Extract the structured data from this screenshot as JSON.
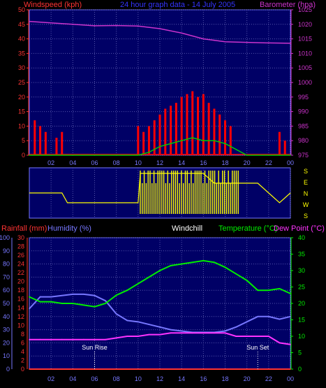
{
  "header": {
    "windspeed_label": "Windspeed (kph)",
    "title": "24 hour graph data - 14 July 2005",
    "barometer_label": "Barometer (hpa)"
  },
  "wind_chart": {
    "left_ticks": [
      "50",
      "45",
      "40",
      "35",
      "30",
      "25",
      "20",
      "15",
      "10",
      "5",
      "0"
    ],
    "right_ticks": [
      "1025",
      "1020",
      "1015",
      "1010",
      "1005",
      "1000",
      "995",
      "990",
      "985",
      "980",
      "975"
    ],
    "x_ticks": [
      "02",
      "04",
      "06",
      "08",
      "10",
      "12",
      "14",
      "16",
      "18",
      "20",
      "22",
      "00"
    ]
  },
  "direction_chart": {
    "compass": [
      "S",
      "E",
      "N",
      "W",
      "S"
    ]
  },
  "weather_header": {
    "rainfall_label": "Rainfall (mm)",
    "humidity_label": "Humidity (%)",
    "windchill_label": "Windchill",
    "temperature_label": "Temperature (°C)",
    "dewpoint_label": "Dew Point (°C)"
  },
  "weather_chart": {
    "humidity_ticks": [
      "100",
      "90",
      "80",
      "70",
      "60",
      "50",
      "40",
      "30",
      "20",
      "10",
      "0"
    ],
    "rain_ticks": [
      "30",
      "28",
      "26",
      "24",
      "22",
      "20",
      "18",
      "16",
      "14",
      "12",
      "10",
      "8",
      "6",
      "4",
      "2",
      "0"
    ],
    "temp_ticks": [
      "40",
      "35",
      "30",
      "25",
      "20",
      "15",
      "10",
      "5",
      "0"
    ],
    "x_ticks": [
      "02",
      "04",
      "06",
      "08",
      "10",
      "12",
      "14",
      "16",
      "18",
      "20",
      "22",
      "00"
    ],
    "sunrise_label": "Sun Rise",
    "sunset_label": "Sun Set"
  },
  "colors": {
    "wind": "#ff0000",
    "gust": "#00cc00",
    "barometer": "#cc33cc",
    "direction": "#ffff00",
    "humidity": "#7777ff",
    "temperature": "#00ee00",
    "dewpoint": "#ff33ff",
    "rainfall": "#ff3333",
    "panel": "#000066"
  },
  "chart_data": [
    {
      "type": "line",
      "x_unit": "hour",
      "ylim_left": [
        0,
        50
      ],
      "ylim_right": [
        975,
        1025
      ],
      "series": [
        {
          "name": "Barometer",
          "axis": "right",
          "x": [
            0,
            2,
            4,
            6,
            8,
            10,
            12,
            14,
            16,
            17,
            18,
            20,
            22,
            24
          ],
          "values": [
            1021,
            1020.5,
            1020,
            1019.5,
            1019.6,
            1019.4,
            1018.5,
            1017,
            1015,
            1014.5,
            1014,
            1013.8,
            1013.6,
            1013.5
          ]
        },
        {
          "name": "Windspeed",
          "axis": "left",
          "x": [
            0,
            0.5,
            1,
            1.5,
            2,
            2.5,
            3,
            3.5,
            4,
            4.5,
            5,
            5.5,
            6,
            6.5,
            7,
            7.5,
            8,
            8.5,
            9,
            9.5,
            10,
            10.5,
            11,
            11.5,
            12,
            12.5,
            13,
            13.5,
            14,
            14.5,
            15,
            15.5,
            16,
            16.5,
            17,
            17.5,
            18,
            18.5,
            19,
            19.5,
            20,
            20.5,
            21,
            21.5,
            22,
            22.5,
            23,
            23.5,
            24
          ],
          "values": [
            0,
            12,
            10,
            8,
            0,
            6,
            8,
            0,
            0,
            0,
            0,
            0,
            0,
            0,
            0,
            0,
            0,
            0,
            0,
            0,
            10,
            8,
            10,
            12,
            14,
            16,
            17,
            18,
            20,
            21,
            22,
            20,
            21,
            18,
            16,
            14,
            12,
            10,
            0,
            0,
            0,
            0,
            0,
            0,
            0,
            0,
            8,
            5,
            0
          ]
        },
        {
          "name": "Gust",
          "axis": "left",
          "x": [
            0,
            2,
            4,
            6,
            8,
            10,
            11,
            12,
            13,
            14,
            15,
            16,
            17,
            18,
            19,
            20,
            22,
            23,
            24
          ],
          "values": [
            0,
            0,
            0,
            0,
            0,
            0,
            1,
            3,
            4,
            5,
            6,
            5,
            5,
            4,
            2,
            0,
            0,
            0,
            0
          ]
        }
      ],
      "x_ticks": [
        "02",
        "04",
        "06",
        "08",
        "10",
        "12",
        "14",
        "16",
        "18",
        "20",
        "22",
        "00"
      ]
    },
    {
      "type": "line",
      "title": "",
      "x_unit": "hour",
      "y_categories": [
        "S",
        "E",
        "N",
        "W",
        "S"
      ],
      "series": [
        {
          "name": "Direction",
          "x": [
            0,
            3,
            3.5,
            7,
            10,
            10.2,
            11,
            12,
            13,
            14,
            15,
            16,
            17,
            18,
            19,
            20,
            21,
            22,
            23,
            24
          ],
          "values": [
            "N",
            "N",
            "W",
            "W",
            "W",
            "S",
            "S",
            "S",
            "S",
            "S",
            "S",
            "S",
            "E",
            "E",
            "E",
            "E",
            "E",
            "N",
            "W",
            "N"
          ]
        }
      ]
    },
    {
      "type": "line",
      "x_unit": "hour",
      "ylim_humidity": [
        0,
        100
      ],
      "ylim_rainfall": [
        0,
        30
      ],
      "ylim_temperature": [
        0,
        40
      ],
      "series": [
        {
          "name": "Humidity",
          "axis": "humidity",
          "x": [
            0,
            1,
            2,
            3,
            4,
            5,
            6,
            7,
            8,
            9,
            10,
            11,
            12,
            13,
            14,
            15,
            16,
            17,
            18,
            19,
            20,
            21,
            22,
            23,
            24
          ],
          "values": [
            46,
            55,
            55,
            56,
            57,
            57,
            56,
            52,
            42,
            37,
            36,
            34,
            32,
            30,
            29,
            28,
            28,
            28,
            29,
            32,
            36,
            40,
            40,
            38,
            40
          ]
        },
        {
          "name": "Temperature",
          "axis": "temperature",
          "x": [
            0,
            1,
            2,
            3,
            4,
            5,
            6,
            7,
            8,
            9,
            10,
            11,
            12,
            13,
            14,
            15,
            16,
            17,
            18,
            19,
            20,
            21,
            22,
            23,
            24
          ],
          "values": [
            22,
            20.5,
            20.5,
            20,
            20,
            19.5,
            19,
            20,
            22.5,
            24,
            26,
            28,
            30,
            31.5,
            32,
            32.5,
            33,
            32.5,
            31,
            29,
            27,
            24,
            24,
            24.5,
            23
          ]
        },
        {
          "name": "Dew Point",
          "axis": "temperature",
          "x": [
            0,
            1,
            2,
            3,
            4,
            5,
            6,
            7,
            8,
            9,
            10,
            11,
            12,
            13,
            14,
            15,
            16,
            17,
            18,
            19,
            20,
            21,
            22,
            23,
            24
          ],
          "values": [
            9,
            9,
            9,
            9,
            9,
            9,
            9,
            9,
            9.5,
            10,
            10,
            10.5,
            10.5,
            11,
            11,
            11,
            11,
            11,
            11,
            10,
            10,
            10,
            10,
            8,
            7.5
          ]
        },
        {
          "name": "Rainfall",
          "axis": "rainfall",
          "x": [
            0,
            24
          ],
          "values": [
            0,
            0
          ]
        }
      ],
      "annotations": [
        {
          "label": "Sun Rise",
          "x": 6
        },
        {
          "label": "Sun Set",
          "x": 21
        }
      ]
    }
  ]
}
